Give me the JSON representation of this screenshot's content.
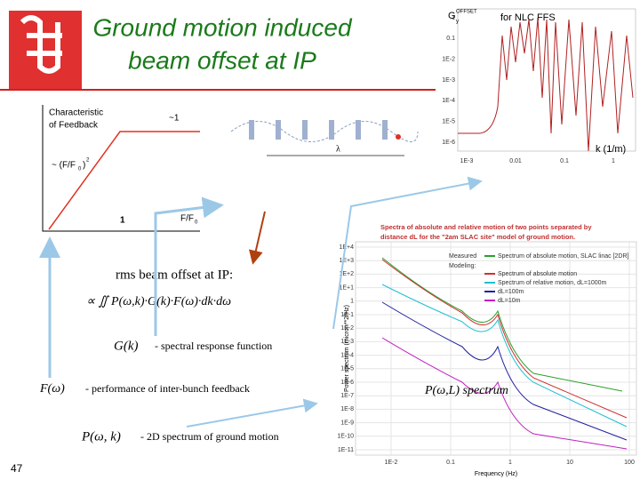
{
  "header": {
    "title_lines": [
      "Ground motion induced",
      "beam offset at IP"
    ],
    "page_number": "47"
  },
  "response_plot": {
    "title": "G",
    "title_sup": "OFFSET",
    "title_sub": "y",
    "title_rest": "for NLC FFS",
    "yticks": [
      "1",
      "0.1",
      "1E-2",
      "1E-3",
      "1E-4",
      "1E-5",
      "1E-6"
    ],
    "xticks": [
      "1E-3",
      "0.01",
      "0.1",
      "1"
    ],
    "xlabel": "k (1/m)"
  },
  "feedback_plot": {
    "title_lines": [
      "Characteristic",
      "of Feedback"
    ],
    "plateau": "~1",
    "slope": "~ (F/F",
    "slope_sub": "0",
    "slope_end": ")",
    "slope_sup": "2",
    "x_mark": "1",
    "xlabel": "F/F",
    "xlabel_sub": "0"
  },
  "lattice": {
    "label": "λ"
  },
  "formula": {
    "heading": "rms  beam offset at IP:",
    "integral": "∝ ∬ P(ω,k)·G(k)·F(ω)·dk·dω",
    "terms": [
      {
        "symbol": "G(k)",
        "text": "- spectral response function"
      },
      {
        "symbol": "F(ω)",
        "text": "- performance of inter-bunch feedback"
      },
      {
        "symbol": "P(ω, k)",
        "text": "- 2D spectrum of ground motion"
      }
    ]
  },
  "spectrum_plot": {
    "title_lines": [
      "Spectra of absolute and relative motion of two points separated by",
      "distance dL for the \"2am SLAC site\" model of ground motion."
    ],
    "legend": [
      "Measured",
      "Spectrum of absolute motion, SLAC linac [2DR]",
      "Modeling:",
      "Spectrum of absolute motion",
      "Spectrum of relative motion, dL=1000m",
      "dL=100m",
      "dL=10m"
    ],
    "ylabel": "Power spectrum (micron**2/Hz)",
    "xlabel": "Frequency (Hz)",
    "yticks": [
      "1E+4",
      "1E+3",
      "1E+2",
      "1E+1",
      "1",
      "1E-1",
      "1E-2",
      "1E-3",
      "1E-4",
      "1E-5",
      "1E-6",
      "1E-7",
      "1E-8",
      "1E-9",
      "1E-10",
      "1E-11"
    ],
    "xticks": [
      "1E-2",
      "0.1",
      "1",
      "10",
      "100"
    ],
    "caption": "P(ω,L) spectrum"
  }
}
